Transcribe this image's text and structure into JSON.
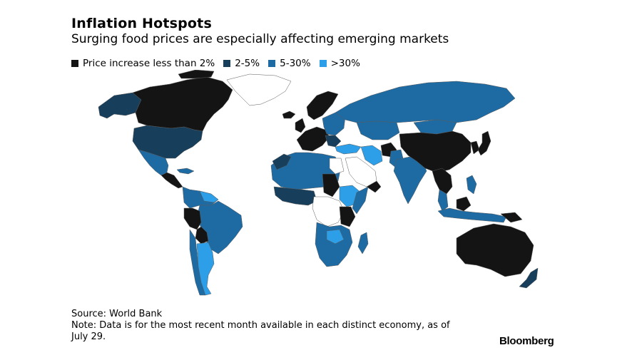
{
  "header": {
    "title": "Inflation Hotspots",
    "subtitle": "Surging food prices are especially affecting emerging markets"
  },
  "legend": {
    "items": [
      {
        "label": "Price increase less than 2%",
        "color": "#141414"
      },
      {
        "label": "2-5%",
        "color": "#173f5c"
      },
      {
        "label": "5-30%",
        "color": "#1e6aa3"
      },
      {
        "label": ">30%",
        "color": "#2d9ee8"
      }
    ]
  },
  "colors": {
    "no_data": "#ffffff",
    "border": "#5a5a5a"
  },
  "footer": {
    "source": "Source: World Bank",
    "note_line1": "Note: Data is for the most recent month available in each distinct economy, as of",
    "note_line2": "July 29."
  },
  "brand": "Bloomberg"
}
